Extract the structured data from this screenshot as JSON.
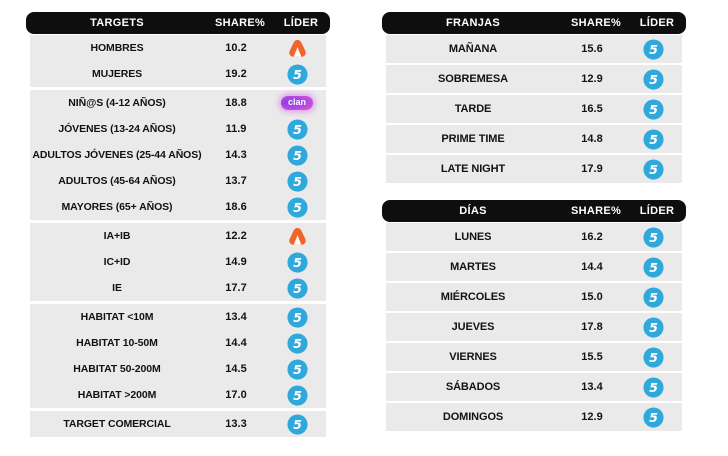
{
  "palette": {
    "header_bg": "#0e0e0e",
    "header_text": "#ffffff",
    "row_bg": "#eaeaea",
    "row_text": "#121212",
    "telecinco_blue": "#2fa8dc",
    "antena3_orange": "#f0652a",
    "clan_purple": "#8a3ce0",
    "clan_pink": "#e757dd"
  },
  "logos": {
    "telecinco_glyph": "5",
    "clan_text": "clan"
  },
  "chart_data": [
    {
      "type": "table",
      "title": "TARGETS",
      "columns": [
        "TARGETS",
        "SHARE%",
        "LÍDER"
      ],
      "leader_legend": {
        "telecinco": "Telecinco",
        "antena3": "Antena 3",
        "clan": "Clan"
      },
      "groups": [
        [
          {
            "label": "HOMBRES",
            "share": "10.2",
            "leader": "antena3"
          },
          {
            "label": "MUJERES",
            "share": "19.2",
            "leader": "telecinco"
          }
        ],
        [
          {
            "label": "NIÑ@S (4-12 AÑOS)",
            "share": "18.8",
            "leader": "clan"
          },
          {
            "label": "JÓVENES (13-24 AÑOS)",
            "share": "11.9",
            "leader": "telecinco"
          },
          {
            "label": "ADULTOS JÓVENES (25-44 AÑOS)",
            "share": "14.3",
            "leader": "telecinco"
          },
          {
            "label": "ADULTOS (45-64 AÑOS)",
            "share": "13.7",
            "leader": "telecinco"
          },
          {
            "label": "MAYORES (65+ AÑOS)",
            "share": "18.6",
            "leader": "telecinco"
          }
        ],
        [
          {
            "label": "IA+IB",
            "share": "12.2",
            "leader": "antena3"
          },
          {
            "label": "IC+ID",
            "share": "14.9",
            "leader": "telecinco"
          },
          {
            "label": "IE",
            "share": "17.7",
            "leader": "telecinco"
          }
        ],
        [
          {
            "label": "HABITAT <10M",
            "share": "13.4",
            "leader": "telecinco"
          },
          {
            "label": "HABITAT 10-50M",
            "share": "14.4",
            "leader": "telecinco"
          },
          {
            "label": "HABITAT 50-200M",
            "share": "14.5",
            "leader": "telecinco"
          },
          {
            "label": "HABITAT >200M",
            "share": "17.0",
            "leader": "telecinco"
          }
        ],
        [
          {
            "label": "TARGET COMERCIAL",
            "share": "13.3",
            "leader": "telecinco"
          }
        ]
      ]
    },
    {
      "type": "table",
      "title": "FRANJAS",
      "columns": [
        "FRANJAS",
        "SHARE%",
        "LÍDER"
      ],
      "groups": [
        [
          {
            "label": "MAÑANA",
            "share": "15.6",
            "leader": "telecinco"
          }
        ],
        [
          {
            "label": "SOBREMESA",
            "share": "12.9",
            "leader": "telecinco"
          }
        ],
        [
          {
            "label": "TARDE",
            "share": "16.5",
            "leader": "telecinco"
          }
        ],
        [
          {
            "label": "PRIME TIME",
            "share": "14.8",
            "leader": "telecinco"
          }
        ],
        [
          {
            "label": "LATE NIGHT",
            "share": "17.9",
            "leader": "telecinco"
          }
        ]
      ]
    },
    {
      "type": "table",
      "title": "DÍAS",
      "columns": [
        "DÍAS",
        "SHARE%",
        "LÍDER"
      ],
      "groups": [
        [
          {
            "label": "LUNES",
            "share": "16.2",
            "leader": "telecinco"
          }
        ],
        [
          {
            "label": "MARTES",
            "share": "14.4",
            "leader": "telecinco"
          }
        ],
        [
          {
            "label": "MIÉRCOLES",
            "share": "15.0",
            "leader": "telecinco"
          }
        ],
        [
          {
            "label": "JUEVES",
            "share": "17.8",
            "leader": "telecinco"
          }
        ],
        [
          {
            "label": "VIERNES",
            "share": "15.5",
            "leader": "telecinco"
          }
        ],
        [
          {
            "label": "SÁBADOS",
            "share": "13.4",
            "leader": "telecinco"
          }
        ],
        [
          {
            "label": "DOMINGOS",
            "share": "12.9",
            "leader": "telecinco"
          }
        ]
      ]
    }
  ]
}
